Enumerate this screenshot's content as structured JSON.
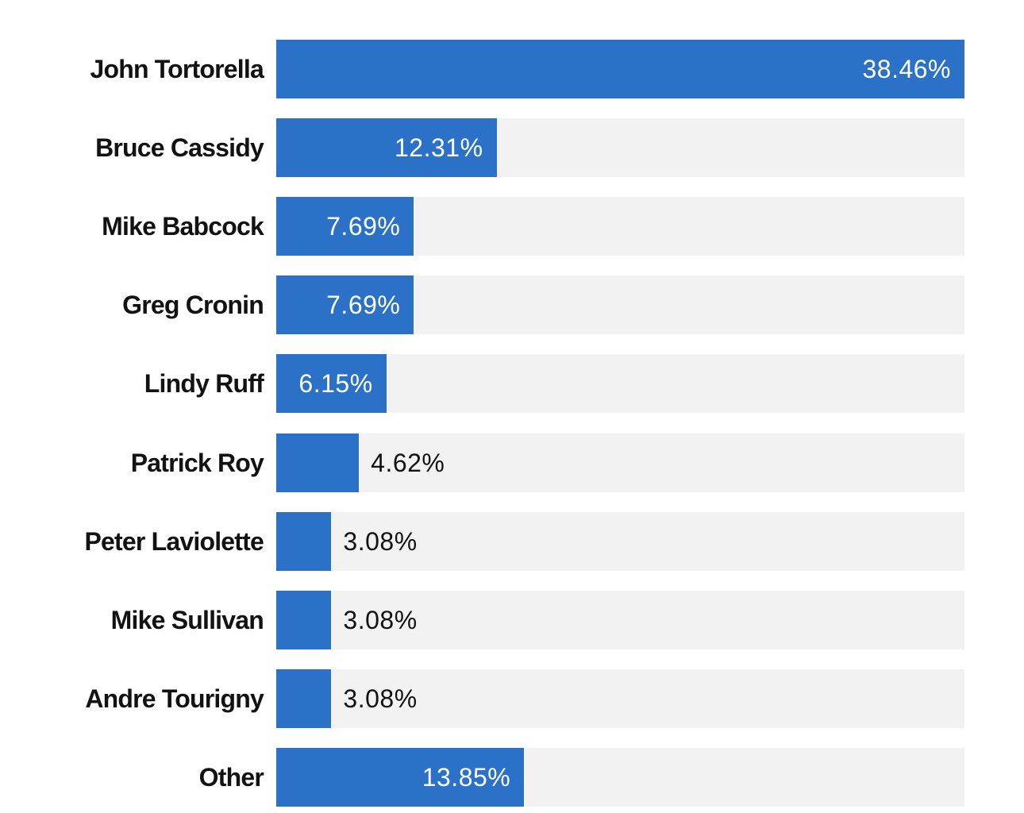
{
  "chart_data": {
    "type": "bar",
    "orientation": "horizontal",
    "title": "",
    "xlabel": "",
    "ylabel": "",
    "categories": [
      "John Tortorella",
      "Bruce Cassidy",
      "Mike Babcock",
      "Greg Cronin",
      "Lindy Ruff",
      "Patrick Roy",
      "Peter Laviolette",
      "Mike Sullivan",
      "Andre Tourigny",
      "Other"
    ],
    "values": [
      38.46,
      12.31,
      7.69,
      7.69,
      6.15,
      4.62,
      3.08,
      3.08,
      3.08,
      13.85
    ],
    "value_labels": [
      "38.46%",
      "12.31%",
      "7.69%",
      "7.69%",
      "6.15%",
      "4.62%",
      "3.08%",
      "3.08%",
      "3.08%",
      "13.85%"
    ],
    "xlim": [
      0,
      38.46
    ],
    "grid": false,
    "colors": {
      "bar": "#2a71c7",
      "track": "#f2f2f2",
      "label_inside": "#ffffff",
      "label_outside": "#121212"
    }
  }
}
